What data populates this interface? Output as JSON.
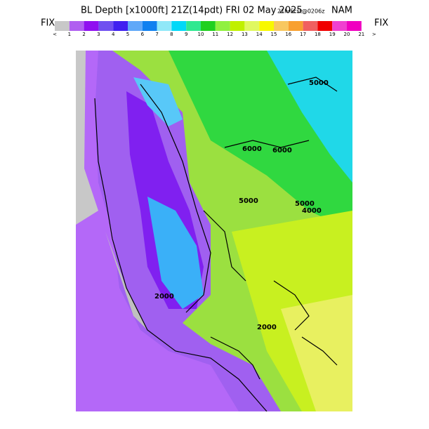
{
  "header": {
    "title": "BL Depth [x1000ft] 21Z(14pdt) FRI 02 May 2025",
    "forecast": "21hrFcst@0206z",
    "model": "NAM"
  },
  "legend": {
    "left_label": "FIX",
    "right_label": "FIX",
    "colors": [
      "#c8c8c8",
      "#b060f0",
      "#9010f0",
      "#7050f0",
      "#4020f0",
      "#60a8f8",
      "#1080f0",
      "#90e8f8",
      "#00d8f8",
      "#30e890",
      "#20d020",
      "#90f040",
      "#c0f000",
      "#e0f860",
      "#f8f800",
      "#f8c860",
      "#f8a030",
      "#f06060",
      "#f00000",
      "#f040d0",
      "#f000c0"
    ],
    "labels": [
      "<",
      "1",
      "2",
      "3",
      "4",
      "5",
      "6",
      "7",
      "8",
      "9",
      "10",
      "11",
      "12",
      "13",
      "14",
      "15",
      "16",
      "17",
      "18",
      "19",
      "20",
      "21",
      ">"
    ]
  },
  "map": {
    "contour_labels": [
      "5000",
      "6000",
      "6000",
      "5000",
      "5000",
      "4000",
      "2000",
      "2000"
    ]
  }
}
